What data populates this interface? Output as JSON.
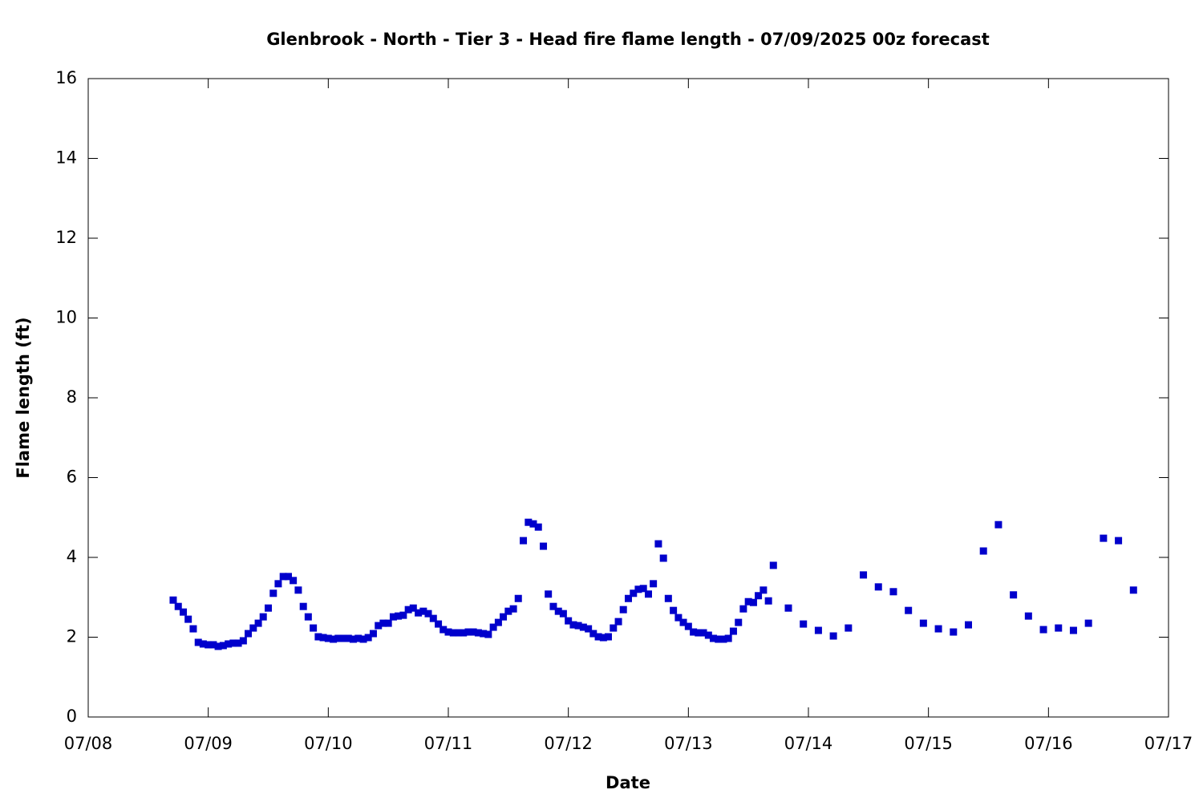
{
  "chart_data": {
    "type": "scatter",
    "title": "Glenbrook - North - Tier 3 - Head fire flame length - 07/09/2025 00z forecast",
    "x_label": "Date",
    "y_label": "Flame length (ft)",
    "color": "#0000cc",
    "xlim": [
      8,
      17
    ],
    "ylim": [
      0,
      16
    ],
    "xticks": [
      {
        "value": 8,
        "label": "07/08"
      },
      {
        "value": 9,
        "label": "07/09"
      },
      {
        "value": 10,
        "label": "07/10"
      },
      {
        "value": 11,
        "label": "07/11"
      },
      {
        "value": 12,
        "label": "07/12"
      },
      {
        "value": 13,
        "label": "07/13"
      },
      {
        "value": 14,
        "label": "07/14"
      },
      {
        "value": 15,
        "label": "07/15"
      },
      {
        "value": 16,
        "label": "07/16"
      },
      {
        "value": 17,
        "label": "07/17"
      }
    ],
    "yticks": [
      0,
      2,
      4,
      6,
      8,
      10,
      12,
      14,
      16
    ],
    "x": [
      8.708,
      8.75,
      8.792,
      8.833,
      8.875,
      8.917,
      8.958,
      9,
      9.042,
      9.083,
      9.125,
      9.167,
      9.208,
      9.25,
      9.292,
      9.333,
      9.375,
      9.417,
      9.458,
      9.5,
      9.542,
      9.583,
      9.625,
      9.667,
      9.708,
      9.75,
      9.792,
      9.833,
      9.875,
      9.917,
      9.958,
      10,
      10.042,
      10.083,
      10.125,
      10.167,
      10.208,
      10.25,
      10.292,
      10.333,
      10.375,
      10.417,
      10.458,
      10.5,
      10.542,
      10.583,
      10.625,
      10.667,
      10.708,
      10.75,
      10.792,
      10.833,
      10.875,
      10.917,
      10.958,
      11,
      11.042,
      11.083,
      11.125,
      11.167,
      11.208,
      11.25,
      11.292,
      11.333,
      11.375,
      11.417,
      11.458,
      11.5,
      11.542,
      11.583,
      11.625,
      11.667,
      11.708,
      11.75,
      11.792,
      11.833,
      11.875,
      11.917,
      11.958,
      12,
      12.042,
      12.083,
      12.125,
      12.167,
      12.208,
      12.25,
      12.292,
      12.333,
      12.375,
      12.417,
      12.458,
      12.5,
      12.542,
      12.583,
      12.625,
      12.667,
      12.708,
      12.75,
      12.792,
      12.833,
      12.875,
      12.917,
      12.958,
      13,
      13.042,
      13.083,
      13.125,
      13.167,
      13.208,
      13.25,
      13.292,
      13.333,
      13.375,
      13.417,
      13.458,
      13.5,
      13.542,
      13.583,
      13.625,
      13.667,
      13.708,
      13.833,
      13.958,
      14.083,
      14.208,
      14.333,
      14.458,
      14.583,
      14.708,
      14.833,
      14.958,
      15.083,
      15.208,
      15.333,
      15.458,
      15.583,
      15.708,
      15.833,
      15.958,
      16.083,
      16.208,
      16.333,
      16.458,
      16.583,
      16.708
    ],
    "values": [
      2.93,
      2.77,
      2.63,
      2.45,
      2.21,
      1.87,
      1.83,
      1.81,
      1.81,
      1.77,
      1.79,
      1.83,
      1.85,
      1.85,
      1.91,
      2.09,
      2.23,
      2.35,
      2.51,
      2.73,
      3.1,
      3.34,
      3.52,
      3.52,
      3.42,
      3.18,
      2.77,
      2.51,
      2.23,
      2.01,
      1.99,
      1.97,
      1.95,
      1.97,
      1.97,
      1.97,
      1.95,
      1.97,
      1.95,
      1.99,
      2.09,
      2.29,
      2.35,
      2.35,
      2.51,
      2.53,
      2.55,
      2.69,
      2.73,
      2.61,
      2.65,
      2.59,
      2.47,
      2.33,
      2.19,
      2.13,
      2.11,
      2.11,
      2.11,
      2.13,
      2.13,
      2.11,
      2.09,
      2.07,
      2.25,
      2.37,
      2.51,
      2.65,
      2.71,
      2.97,
      4.42,
      4.88,
      4.84,
      4.76,
      4.28,
      3.08,
      2.77,
      2.65,
      2.59,
      2.41,
      2.31,
      2.29,
      2.25,
      2.21,
      2.09,
      2.01,
      1.99,
      2.01,
      2.23,
      2.39,
      2.69,
      2.97,
      3.1,
      3.2,
      3.22,
      3.08,
      3.34,
      4.34,
      3.98,
      2.97,
      2.67,
      2.49,
      2.37,
      2.27,
      2.13,
      2.11,
      2.11,
      2.05,
      1.97,
      1.95,
      1.95,
      1.97,
      2.15,
      2.37,
      2.71,
      2.89,
      2.87,
      3.04,
      3.18,
      2.91,
      3.8,
      2.73,
      2.33,
      2.17,
      2.03,
      2.23,
      3.56,
      3.26,
      3.14,
      2.67,
      2.35,
      2.21,
      2.13,
      2.31,
      4.16,
      4.82,
      3.06,
      2.53,
      2.19,
      2.23,
      2.17,
      2.35,
      4.48,
      4.42,
      3.18
    ]
  }
}
